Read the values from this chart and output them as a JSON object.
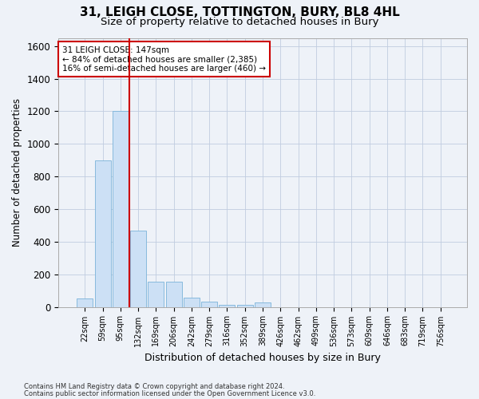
{
  "title1": "31, LEIGH CLOSE, TOTTINGTON, BURY, BL8 4HL",
  "title2": "Size of property relative to detached houses in Bury",
  "xlabel": "Distribution of detached houses by size in Bury",
  "ylabel": "Number of detached properties",
  "categories": [
    "22sqm",
    "59sqm",
    "95sqm",
    "132sqm",
    "169sqm",
    "206sqm",
    "242sqm",
    "279sqm",
    "316sqm",
    "352sqm",
    "389sqm",
    "426sqm",
    "462sqm",
    "499sqm",
    "536sqm",
    "573sqm",
    "609sqm",
    "646sqm",
    "683sqm",
    "719sqm",
    "756sqm"
  ],
  "values": [
    50,
    900,
    1200,
    470,
    155,
    155,
    55,
    30,
    15,
    15,
    25,
    0,
    0,
    0,
    0,
    0,
    0,
    0,
    0,
    0,
    0
  ],
  "bar_color": "#cce0f5",
  "bar_edge_color": "#7ab3d9",
  "vline_x_index": 3,
  "vline_color": "#cc0000",
  "annotation_title": "31 LEIGH CLOSE: 147sqm",
  "annotation_line1": "← 84% of detached houses are smaller (2,385)",
  "annotation_line2": "16% of semi-detached houses are larger (460) →",
  "annotation_box_color": "#cc0000",
  "ylim": [
    0,
    1650
  ],
  "yticks": [
    0,
    200,
    400,
    600,
    800,
    1000,
    1200,
    1400,
    1600
  ],
  "footer1": "Contains HM Land Registry data © Crown copyright and database right 2024.",
  "footer2": "Contains public sector information licensed under the Open Government Licence v3.0.",
  "bg_color": "#eef2f8",
  "plot_bg_color": "#eef2f8",
  "title1_fontsize": 11,
  "title2_fontsize": 9.5
}
